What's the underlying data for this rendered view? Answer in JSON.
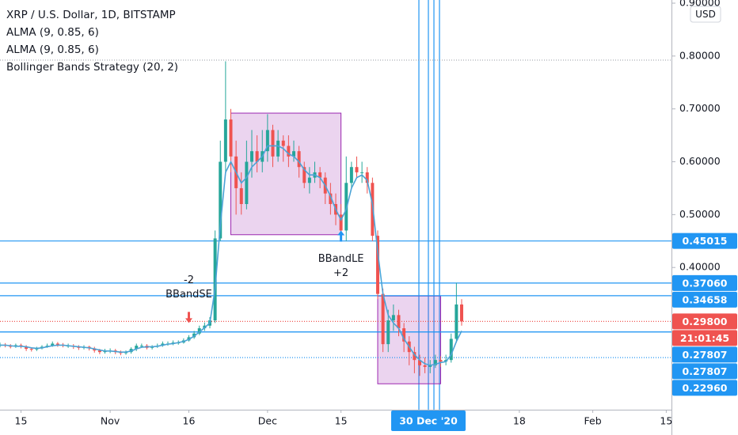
{
  "chart_data": {
    "type": "candlestick",
    "title": "XRP / U.S. Dollar, 1D, BITSTAMP",
    "indicators": [
      "ALMA (9, 0.85, 6)",
      "ALMA (9, 0.85, 6)",
      "Bollinger Bands Strategy (20, 2)"
    ],
    "currency": "USD",
    "up_color": "#26a69a",
    "down_color": "#ef5350",
    "x": [
      "2020-10-11",
      "2020-10-12",
      "2020-10-13",
      "2020-10-14",
      "2020-10-15",
      "2020-10-16",
      "2020-10-17",
      "2020-10-18",
      "2020-10-19",
      "2020-10-20",
      "2020-10-21",
      "2020-10-22",
      "2020-10-23",
      "2020-10-24",
      "2020-10-25",
      "2020-10-26",
      "2020-10-27",
      "2020-10-28",
      "2020-10-29",
      "2020-10-30",
      "2020-10-31",
      "2020-11-01",
      "2020-11-02",
      "2020-11-03",
      "2020-11-04",
      "2020-11-05",
      "2020-11-06",
      "2020-11-07",
      "2020-11-08",
      "2020-11-09",
      "2020-11-10",
      "2020-11-11",
      "2020-11-12",
      "2020-11-13",
      "2020-11-14",
      "2020-11-15",
      "2020-11-16",
      "2020-11-17",
      "2020-11-18",
      "2020-11-19",
      "2020-11-20",
      "2020-11-21",
      "2020-11-22",
      "2020-11-23",
      "2020-11-24",
      "2020-11-25",
      "2020-11-26",
      "2020-11-27",
      "2020-11-28",
      "2020-11-29",
      "2020-11-30",
      "2020-12-01",
      "2020-12-02",
      "2020-12-03",
      "2020-12-04",
      "2020-12-05",
      "2020-12-06",
      "2020-12-07",
      "2020-12-08",
      "2020-12-09",
      "2020-12-10",
      "2020-12-11",
      "2020-12-12",
      "2020-12-13",
      "2020-12-14",
      "2020-12-15",
      "2020-12-16",
      "2020-12-17",
      "2020-12-18",
      "2020-12-19",
      "2020-12-20",
      "2020-12-21",
      "2020-12-22",
      "2020-12-23",
      "2020-12-24",
      "2020-12-25",
      "2020-12-26",
      "2020-12-27",
      "2020-12-28",
      "2020-12-29",
      "2020-12-30",
      "2020-12-31",
      "2021-01-01",
      "2021-01-02",
      "2021-01-03",
      "2021-01-04",
      "2021-01-05",
      "2021-01-06",
      "2021-01-07"
    ],
    "open": [
      0.252,
      0.254,
      0.252,
      0.25,
      0.253,
      0.25,
      0.246,
      0.245,
      0.247,
      0.25,
      0.252,
      0.256,
      0.254,
      0.252,
      0.252,
      0.25,
      0.248,
      0.25,
      0.247,
      0.243,
      0.24,
      0.242,
      0.243,
      0.24,
      0.238,
      0.24,
      0.246,
      0.252,
      0.252,
      0.248,
      0.25,
      0.252,
      0.256,
      0.256,
      0.258,
      0.258,
      0.262,
      0.268,
      0.275,
      0.285,
      0.29,
      0.3,
      0.455,
      0.6,
      0.68,
      0.61,
      0.55,
      0.52,
      0.6,
      0.62,
      0.6,
      0.62,
      0.66,
      0.61,
      0.64,
      0.63,
      0.61,
      0.62,
      0.59,
      0.56,
      0.57,
      0.58,
      0.57,
      0.54,
      0.52,
      0.5,
      0.47,
      0.56,
      0.59,
      0.58,
      0.58,
      0.56,
      0.46,
      0.35,
      0.255,
      0.3,
      0.31,
      0.285,
      0.26,
      0.24,
      0.225,
      0.215,
      0.212,
      0.215,
      0.225,
      0.222,
      0.225,
      0.265,
      0.33
    ],
    "high": [
      0.258,
      0.257,
      0.255,
      0.256,
      0.256,
      0.253,
      0.249,
      0.25,
      0.253,
      0.256,
      0.26,
      0.259,
      0.257,
      0.256,
      0.255,
      0.253,
      0.253,
      0.252,
      0.25,
      0.246,
      0.246,
      0.247,
      0.246,
      0.243,
      0.243,
      0.249,
      0.256,
      0.256,
      0.255,
      0.253,
      0.256,
      0.26,
      0.26,
      0.262,
      0.262,
      0.266,
      0.272,
      0.28,
      0.29,
      0.296,
      0.306,
      0.47,
      0.64,
      0.79,
      0.7,
      0.64,
      0.58,
      0.64,
      0.66,
      0.65,
      0.66,
      0.69,
      0.67,
      0.66,
      0.65,
      0.65,
      0.64,
      0.63,
      0.6,
      0.59,
      0.6,
      0.59,
      0.58,
      0.56,
      0.54,
      0.52,
      0.61,
      0.6,
      0.61,
      0.6,
      0.59,
      0.57,
      0.47,
      0.36,
      0.32,
      0.33,
      0.32,
      0.295,
      0.27,
      0.25,
      0.235,
      0.23,
      0.225,
      0.235,
      0.232,
      0.235,
      0.275,
      0.371,
      0.34
    ],
    "low": [
      0.249,
      0.249,
      0.247,
      0.248,
      0.247,
      0.242,
      0.241,
      0.242,
      0.245,
      0.248,
      0.25,
      0.25,
      0.249,
      0.248,
      0.246,
      0.244,
      0.245,
      0.243,
      0.239,
      0.236,
      0.237,
      0.238,
      0.236,
      0.234,
      0.235,
      0.237,
      0.242,
      0.248,
      0.245,
      0.245,
      0.248,
      0.25,
      0.252,
      0.253,
      0.254,
      0.256,
      0.26,
      0.265,
      0.272,
      0.28,
      0.285,
      0.295,
      0.45,
      0.58,
      0.58,
      0.5,
      0.5,
      0.51,
      0.57,
      0.58,
      0.58,
      0.6,
      0.59,
      0.6,
      0.6,
      0.59,
      0.6,
      0.57,
      0.55,
      0.54,
      0.56,
      0.55,
      0.52,
      0.5,
      0.48,
      0.46,
      0.45,
      0.55,
      0.57,
      0.56,
      0.54,
      0.45,
      0.34,
      0.24,
      0.24,
      0.28,
      0.27,
      0.24,
      0.215,
      0.2,
      0.195,
      0.2,
      0.2,
      0.21,
      0.212,
      0.215,
      0.22,
      0.258,
      0.29
    ],
    "close": [
      0.254,
      0.252,
      0.25,
      0.253,
      0.25,
      0.246,
      0.245,
      0.247,
      0.25,
      0.252,
      0.256,
      0.254,
      0.252,
      0.252,
      0.25,
      0.248,
      0.25,
      0.247,
      0.243,
      0.24,
      0.242,
      0.243,
      0.24,
      0.238,
      0.24,
      0.246,
      0.252,
      0.252,
      0.248,
      0.25,
      0.252,
      0.256,
      0.256,
      0.258,
      0.258,
      0.262,
      0.268,
      0.275,
      0.285,
      0.29,
      0.3,
      0.455,
      0.6,
      0.68,
      0.61,
      0.55,
      0.52,
      0.6,
      0.62,
      0.6,
      0.62,
      0.66,
      0.61,
      0.64,
      0.63,
      0.61,
      0.62,
      0.59,
      0.56,
      0.57,
      0.58,
      0.57,
      0.54,
      0.52,
      0.5,
      0.47,
      0.56,
      0.59,
      0.58,
      0.58,
      0.56,
      0.46,
      0.35,
      0.255,
      0.3,
      0.31,
      0.285,
      0.26,
      0.24,
      0.225,
      0.215,
      0.212,
      0.215,
      0.225,
      0.222,
      0.225,
      0.265,
      0.33,
      0.298
    ],
    "overlay": {
      "color": "#4ba3d6",
      "values": [
        0.253,
        0.253,
        0.252,
        0.251,
        0.251,
        0.25,
        0.248,
        0.247,
        0.248,
        0.25,
        0.252,
        0.253,
        0.253,
        0.252,
        0.251,
        0.25,
        0.249,
        0.248,
        0.246,
        0.244,
        0.242,
        0.242,
        0.241,
        0.24,
        0.24,
        0.242,
        0.246,
        0.249,
        0.25,
        0.25,
        0.251,
        0.253,
        0.255,
        0.256,
        0.258,
        0.26,
        0.264,
        0.27,
        0.278,
        0.286,
        0.295,
        0.36,
        0.48,
        0.58,
        0.6,
        0.58,
        0.56,
        0.57,
        0.59,
        0.6,
        0.61,
        0.63,
        0.63,
        0.63,
        0.625,
        0.615,
        0.61,
        0.6,
        0.585,
        0.575,
        0.575,
        0.57,
        0.555,
        0.535,
        0.51,
        0.49,
        0.51,
        0.55,
        0.57,
        0.575,
        0.565,
        0.52,
        0.43,
        0.35,
        0.31,
        0.295,
        0.285,
        0.265,
        0.25,
        0.235,
        0.225,
        0.218,
        0.215,
        0.217,
        0.22,
        0.222,
        0.235,
        0.26,
        0.28
      ]
    },
    "xlim": [
      "2020-10-11",
      "2021-02-16"
    ],
    "xticks": [
      {
        "value": "2020-10-15",
        "label": "15"
      },
      {
        "value": "2020-11-01",
        "label": "Nov"
      },
      {
        "value": "2020-11-16",
        "label": "16"
      },
      {
        "value": "2020-12-01",
        "label": "Dec"
      },
      {
        "value": "2020-12-15",
        "label": "15"
      },
      {
        "value": "2021-01-18",
        "label": "18"
      },
      {
        "value": "2021-02-01",
        "label": "Feb"
      },
      {
        "value": "2021-02-15",
        "label": "15"
      }
    ],
    "cursor_label": {
      "value": "2020-12-30",
      "label": "30 Dec '20"
    },
    "ylim": [
      0.131,
      0.906
    ],
    "yticks": [
      {
        "value": 0.9,
        "label": "0.90000"
      },
      {
        "value": 0.8,
        "label": "0.80000"
      },
      {
        "value": 0.7,
        "label": "0.70000"
      },
      {
        "value": 0.6,
        "label": "0.60000"
      },
      {
        "value": 0.5,
        "label": "0.50000"
      },
      {
        "value": 0.4,
        "label": "0.40000"
      }
    ],
    "price_lines": [
      {
        "value": 0.45015,
        "color": "#2196f3",
        "style": "solid"
      },
      {
        "value": 0.3706,
        "label": "0.37060",
        "color": "#2196f3",
        "style": "solid"
      },
      {
        "value": 0.34658,
        "label": "0.34658",
        "color": "#2196f3",
        "style": "solid"
      },
      {
        "value": 0.298,
        "label": "0.29800",
        "color": "#ef5350",
        "style": "dotted",
        "countdown": "21:01:45"
      },
      {
        "value": 0.27807,
        "color": "#2196f3",
        "style": "solid"
      },
      {
        "value": 0.27807,
        "color": "#2196f3",
        "style": "solid"
      },
      {
        "value": 0.2296,
        "label": "0.22960",
        "color": "#2196f3",
        "style": "dotted"
      }
    ],
    "boxes": [
      {
        "x": [
          "2020-11-24",
          "2020-12-15"
        ],
        "y": [
          0.462,
          0.692
        ],
        "color": "#9c27b0"
      },
      {
        "x": [
          "2020-12-22",
          "2021-01-03"
        ],
        "y": [
          0.18,
          0.346
        ],
        "color": "#9c27b0"
      }
    ],
    "signals": [
      {
        "x": "2020-11-16",
        "price": 0.31,
        "label": "BBandSE",
        "qty": "-2",
        "color": "#ef5350",
        "dir": "down"
      },
      {
        "x": "2020-12-15",
        "price": 0.455,
        "label": "BBandLE",
        "qty": "+2",
        "color": "#2196f3",
        "dir": "up"
      }
    ]
  }
}
